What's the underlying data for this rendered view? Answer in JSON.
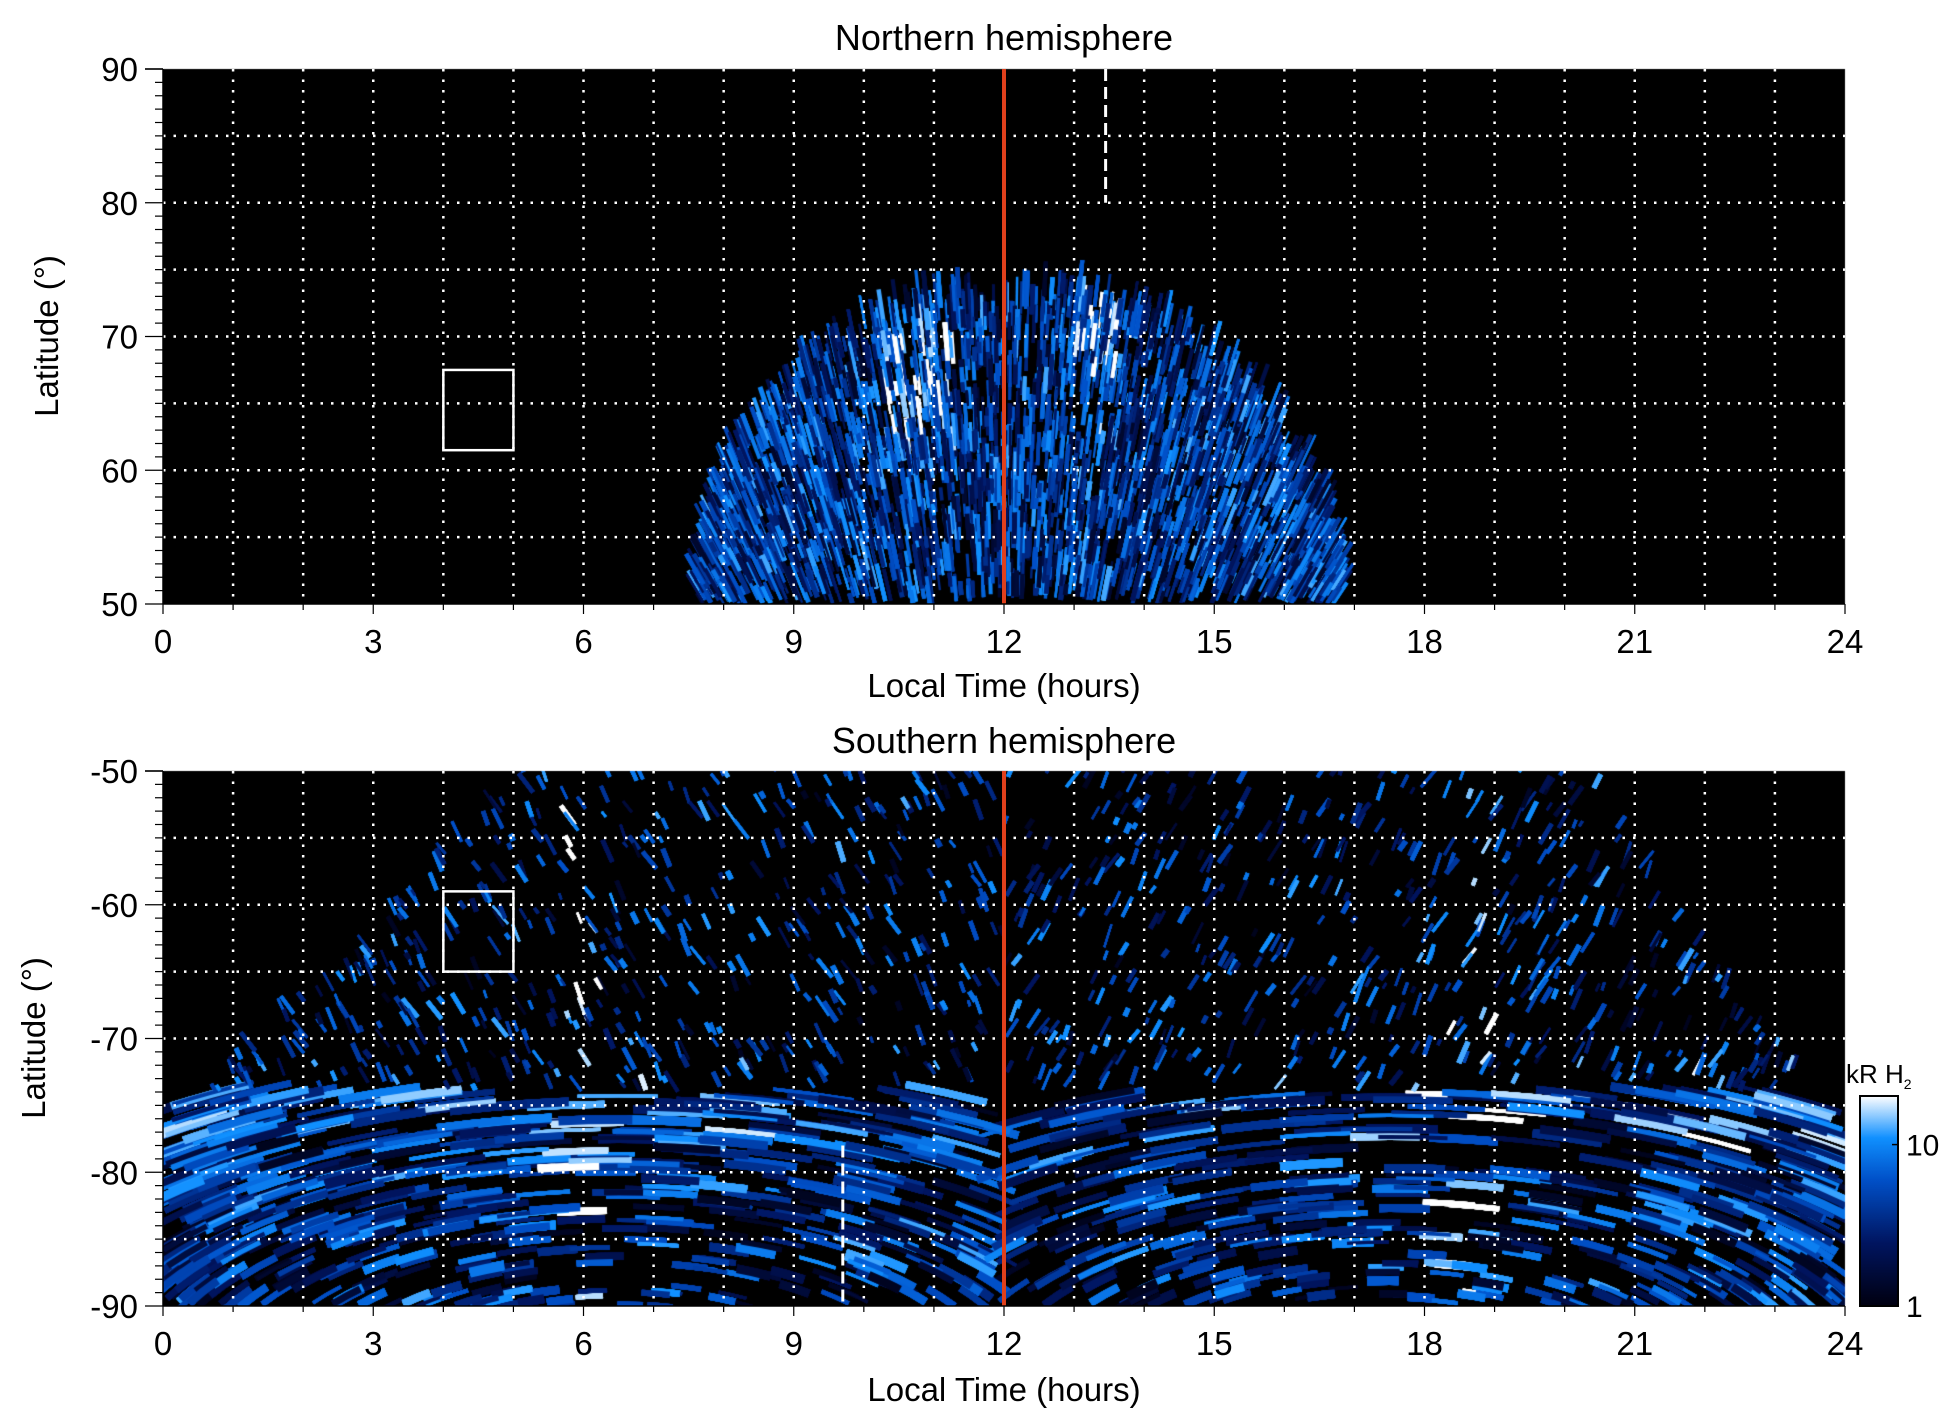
{
  "chart_data": [
    {
      "type": "heatmap",
      "title": "Northern hemisphere",
      "xlabel": "Local Time (hours)",
      "ylabel": "Latitude (°)",
      "xlim": [
        0,
        24
      ],
      "ylim": [
        50,
        90
      ],
      "xticks": [
        0,
        3,
        6,
        9,
        12,
        15,
        18,
        21,
        24
      ],
      "yticks": [
        50,
        60,
        70,
        80,
        90
      ],
      "grid": {
        "x_step_hours": 1,
        "y_step_deg": 5,
        "style": "dotted",
        "color": "#ffffff"
      },
      "emission_region": {
        "lt_range": [
          7.7,
          16.7
        ],
        "max_lat": 73.5,
        "noon_lat": 71.5
      },
      "annotations": {
        "noon_line": {
          "lt": 12,
          "color": "#e0401c"
        },
        "dashed_line": {
          "lt": 13.45,
          "lat": [
            80,
            90
          ]
        },
        "box": {
          "lt": [
            4,
            5
          ],
          "lat": [
            61.5,
            67.5
          ]
        }
      }
    },
    {
      "type": "heatmap",
      "title": "Southern hemisphere",
      "xlabel": "Local Time (hours)",
      "ylabel": "Latitude (°)",
      "xlim": [
        0,
        24
      ],
      "ylim": [
        -90,
        -50
      ],
      "xticks": [
        0,
        3,
        6,
        9,
        12,
        15,
        18,
        21,
        24
      ],
      "yticks": [
        -90,
        -80,
        -70,
        -60,
        -50
      ],
      "grid": {
        "x_step_hours": 1,
        "y_step_deg": 5,
        "style": "dotted",
        "color": "#ffffff"
      },
      "emission_region": {
        "lt_range_at_minus50": [
          5,
          20.3
        ],
        "full_coverage_below_lat": -77
      },
      "annotations": {
        "noon_line": {
          "lt": 12,
          "color": "#e0401c"
        },
        "dashed_line": {
          "lt": 9.7,
          "lat": [
            -90,
            -78
          ]
        },
        "box": {
          "lt": [
            4,
            5
          ],
          "lat": [
            -65,
            -59
          ]
        }
      }
    }
  ],
  "colorbar": {
    "label": "kR H",
    "label_subscript": "2",
    "scale": "log",
    "range": [
      1,
      20
    ],
    "ticks": [
      1,
      10
    ],
    "tick_labels": [
      "1",
      "10"
    ],
    "colors": [
      "#000010",
      "#001560",
      "#0050c8",
      "#1090ff",
      "#ffffff"
    ]
  }
}
